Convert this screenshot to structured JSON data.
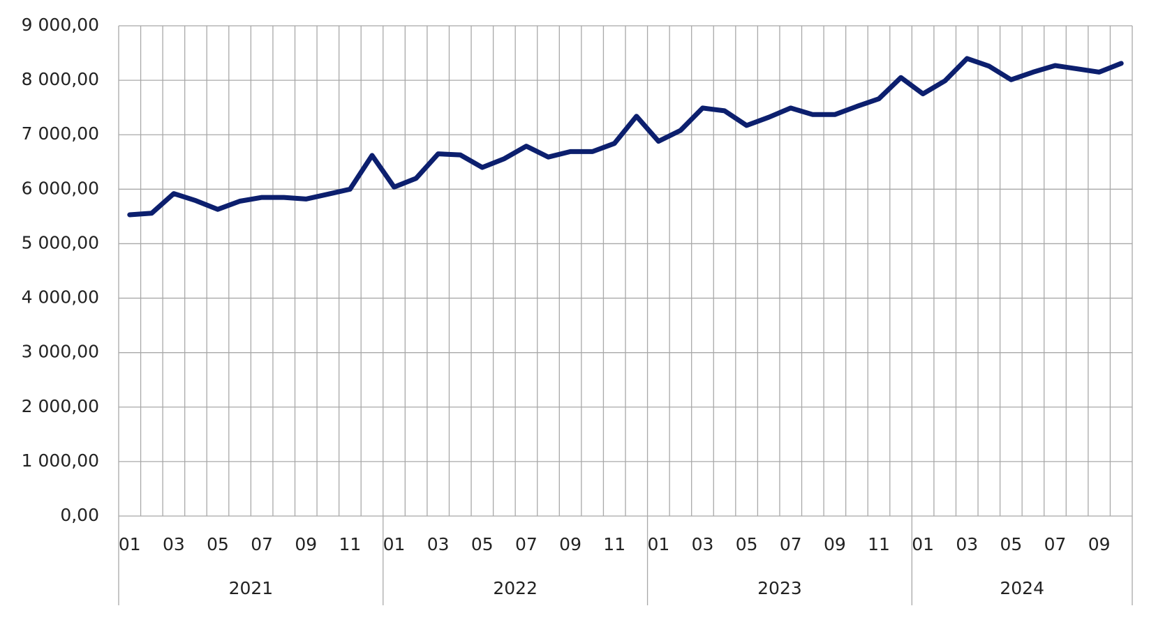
{
  "chart_data": {
    "type": "line",
    "categories": [
      "01",
      null,
      "03",
      null,
      "05",
      null,
      "07",
      null,
      "09",
      null,
      "11",
      null,
      "01",
      null,
      "03",
      null,
      "05",
      null,
      "07",
      null,
      "09",
      null,
      "11",
      null,
      "01",
      null,
      "03",
      null,
      "05",
      null,
      "07",
      null,
      "09",
      null,
      "11",
      null,
      "01",
      null,
      "03",
      null,
      "05",
      null,
      "07",
      null,
      "09",
      null
    ],
    "groups": [
      "2021",
      "2022",
      "2023",
      "2024"
    ],
    "values": [
      5530,
      5560,
      5920,
      5790,
      5630,
      5780,
      5850,
      5850,
      5820,
      5910,
      6000,
      6620,
      6040,
      6200,
      6650,
      6630,
      6400,
      6560,
      6790,
      6590,
      6690,
      6690,
      6840,
      7340,
      6880,
      7080,
      7490,
      7440,
      7170,
      7320,
      7490,
      7370,
      7370,
      7520,
      7660,
      8050,
      7750,
      7990,
      8400,
      8260,
      8010,
      8150,
      8270,
      8210,
      8150,
      8310
    ],
    "color": "#0c1f6e",
    "ylim": [
      0,
      9000
    ],
    "yticks": [
      {
        "value": 0,
        "label": "0,00"
      },
      {
        "value": 1000,
        "label": "1 000,00"
      },
      {
        "value": 2000,
        "label": "2 000,00"
      },
      {
        "value": 3000,
        "label": "3 000,00"
      },
      {
        "value": 4000,
        "label": "4 000,00"
      },
      {
        "value": 5000,
        "label": "5 000,00"
      },
      {
        "value": 6000,
        "label": "6 000,00"
      },
      {
        "value": 7000,
        "label": "7 000,00"
      },
      {
        "value": 8000,
        "label": "8 000,00"
      },
      {
        "value": 9000,
        "label": "9 000,00"
      }
    ],
    "grid": true
  }
}
